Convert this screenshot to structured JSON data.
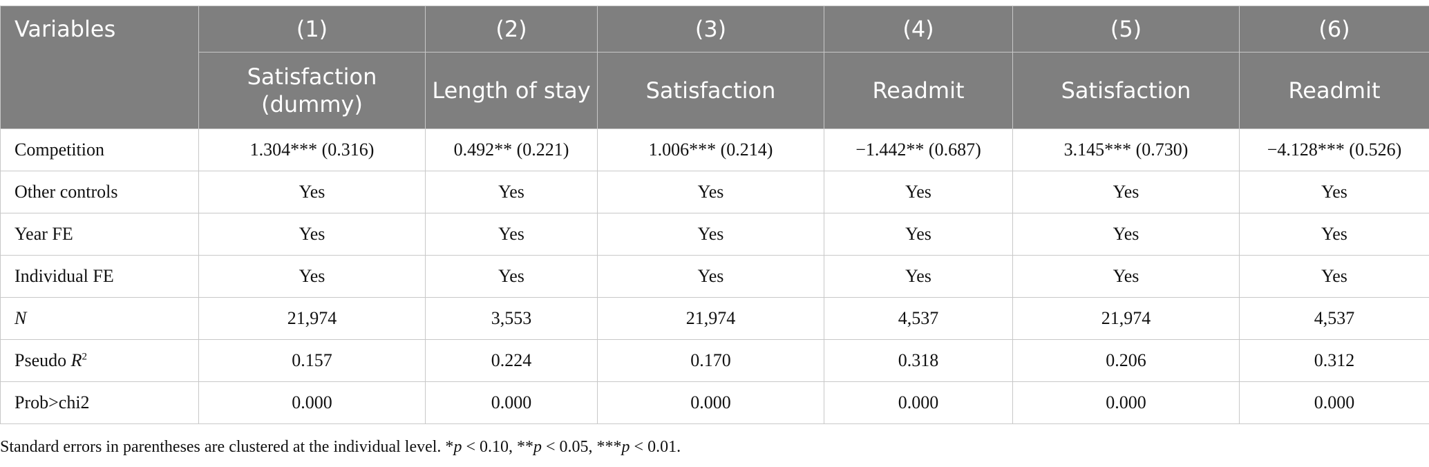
{
  "header": {
    "variables_label": "Variables",
    "columns": [
      {
        "num": "(1)",
        "dep": "Satisfaction (dummy)"
      },
      {
        "num": "(2)",
        "dep": "Length of stay"
      },
      {
        "num": "(3)",
        "dep": "Satisfaction"
      },
      {
        "num": "(4)",
        "dep": "Readmit"
      },
      {
        "num": "(5)",
        "dep": "Satisfaction"
      },
      {
        "num": "(6)",
        "dep": "Readmit"
      }
    ]
  },
  "rows": {
    "competition": {
      "label": "Competition",
      "values": [
        "1.304*** (0.316)",
        "0.492** (0.221)",
        "1.006*** (0.214)",
        "−1.442** (0.687)",
        "3.145*** (0.730)",
        "−4.128*** (0.526)"
      ]
    },
    "other_controls": {
      "label": "Other controls",
      "values": [
        "Yes",
        "Yes",
        "Yes",
        "Yes",
        "Yes",
        "Yes"
      ]
    },
    "year_fe": {
      "label": "Year FE",
      "values": [
        "Yes",
        "Yes",
        "Yes",
        "Yes",
        "Yes",
        "Yes"
      ]
    },
    "individual_fe": {
      "label": "Individual FE",
      "values": [
        "Yes",
        "Yes",
        "Yes",
        "Yes",
        "Yes",
        "Yes"
      ]
    },
    "n": {
      "label": "N",
      "values": [
        "21,974",
        "3,553",
        "21,974",
        "4,537",
        "21,974",
        "4,537"
      ]
    },
    "pseudo_r2": {
      "label_main": "Pseudo ",
      "label_var": "R",
      "label_sup": "2",
      "values": [
        "0.157",
        "0.224",
        "0.170",
        "0.318",
        "0.206",
        "0.312"
      ]
    },
    "prob_chi2": {
      "label": "Prob>chi2",
      "values": [
        "0.000",
        "0.000",
        "0.000",
        "0.000",
        "0.000",
        "0.000"
      ]
    }
  },
  "note": {
    "lead": "Standard errors in parentheses are clustered at the individual level. *",
    "p": "p",
    "t1": " < 0.10, **",
    "t2": " < 0.05, ***",
    "t3": " < 0.01."
  }
}
